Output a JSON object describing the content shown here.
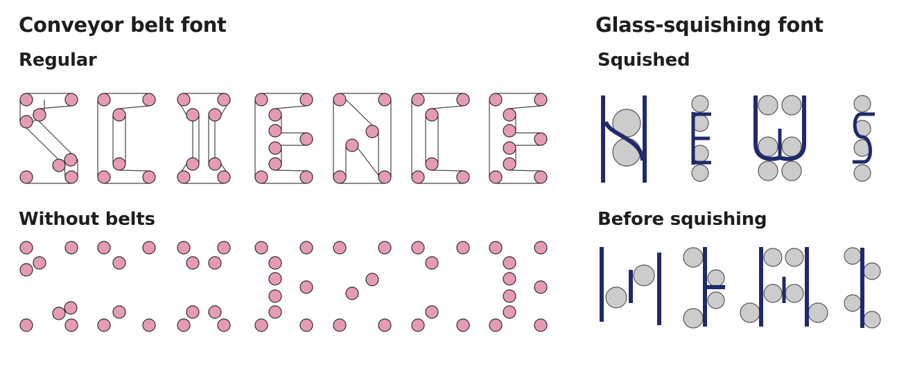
{
  "conveyor": {
    "title": "Conveyor belt font",
    "regular_label": "Regular",
    "without_label": "Without belts",
    "word": "SCIENCE",
    "colors": {
      "pulley_fill": "#e59ab6",
      "pulley_stroke": "#2b2b2b",
      "belt": "#444444"
    }
  },
  "glass": {
    "title": "Glass-squishing font",
    "squished_label": "Squished",
    "before_label": "Before squishing",
    "word": "NEWS",
    "colors": {
      "glass": "#1f2a6b",
      "ball_fill": "#cccccc",
      "ball_stroke": "#555555"
    }
  }
}
